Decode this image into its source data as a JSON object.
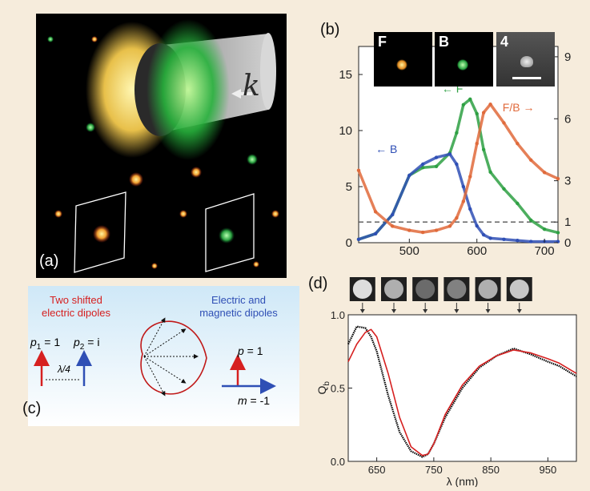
{
  "panel_a": {
    "label": "(a)",
    "k_symbol": "k"
  },
  "panel_b": {
    "label": "(b)",
    "insets": [
      "F",
      "B",
      "4"
    ],
    "labels": {
      "F": "F",
      "B": "B",
      "FB": "F/B"
    },
    "chart_data": {
      "type": "line",
      "x": [
        425,
        450,
        475,
        500,
        520,
        540,
        560,
        570,
        580,
        590,
        600,
        610,
        620,
        640,
        660,
        680,
        700,
        720
      ],
      "xlim": [
        425,
        720
      ],
      "left_ylim": [
        0,
        17.5
      ],
      "right_ylim": [
        0,
        9.5
      ],
      "left_ticks": [
        "0",
        "5",
        "10",
        "15"
      ],
      "right_ticks": [
        "0",
        "1",
        "3",
        "6",
        "9"
      ],
      "x_ticks": [
        "500",
        "600",
        "700"
      ],
      "series": [
        {
          "name": "F",
          "axis": "left",
          "color": "#2ea043",
          "values": [
            0.3,
            0.8,
            2.5,
            6.0,
            6.7,
            6.8,
            8.0,
            9.8,
            12.3,
            12.8,
            11.5,
            8.3,
            6.3,
            4.8,
            3.5,
            2.0,
            1.2,
            0.9
          ]
        },
        {
          "name": "B",
          "axis": "left",
          "color": "#2f4fb5",
          "values": [
            0.3,
            0.8,
            2.5,
            6.0,
            7.0,
            7.6,
            7.9,
            7.0,
            5.0,
            3.0,
            1.5,
            0.7,
            0.4,
            0.3,
            0.2,
            0.1,
            0.1,
            0.1
          ]
        },
        {
          "name": "F/B",
          "axis": "right",
          "color": "#e06a3b",
          "values": [
            3.5,
            1.5,
            0.8,
            0.6,
            0.5,
            0.6,
            0.8,
            1.2,
            2.0,
            3.2,
            4.8,
            6.3,
            6.7,
            5.8,
            4.8,
            4.0,
            3.4,
            3.1
          ]
        }
      ],
      "reference_line": {
        "axis": "right",
        "value": 1,
        "style": "dashed"
      }
    }
  },
  "panel_c": {
    "label": "(c)",
    "left_title": [
      "Two shifted",
      "electric dipoles"
    ],
    "right_title": [
      "Electric and",
      "magnetic dipoles"
    ],
    "p1_label": "p",
    "p1_sub": "1",
    "p1_val": " = 1",
    "p2_label": "p",
    "p2_sub": "2",
    "p2_val": " = i",
    "shift_label": "λ/4",
    "p_label": "p",
    "p_val": " = 1",
    "m_label": "m",
    "m_val": " = -1",
    "colors": {
      "red": "#d62020",
      "blue": "#2f4fb5"
    }
  },
  "panel_d": {
    "label": "(d)",
    "ylabel": "Q",
    "ylabel_sub": "b",
    "xlabel": "λ (nm)",
    "chart_data": {
      "type": "line",
      "xlim": [
        600,
        1000
      ],
      "ylim": [
        0,
        1
      ],
      "x_ticks": [
        "650",
        "750",
        "850",
        "950"
      ],
      "y_ticks": [
        "0.0",
        "0.5",
        "1.0"
      ],
      "thumbnail_wavelengths": [
        625,
        680,
        735,
        790,
        845,
        900
      ],
      "series": [
        {
          "name": "",
          "color": "#000000",
          "style": "dotted",
          "x": [
            600,
            615,
            630,
            640,
            650,
            670,
            690,
            710,
            730,
            740,
            750,
            770,
            800,
            830,
            860,
            890,
            920,
            950,
            970,
            1000
          ],
          "values": [
            0.8,
            0.92,
            0.91,
            0.85,
            0.75,
            0.45,
            0.2,
            0.07,
            0.03,
            0.05,
            0.12,
            0.3,
            0.5,
            0.64,
            0.72,
            0.77,
            0.73,
            0.68,
            0.65,
            0.58
          ]
        },
        {
          "name": "",
          "color": "#d62020",
          "style": "solid",
          "x": [
            600,
            615,
            630,
            640,
            650,
            670,
            690,
            710,
            730,
            740,
            750,
            770,
            800,
            830,
            860,
            890,
            920,
            950,
            970,
            1000
          ],
          "values": [
            0.68,
            0.8,
            0.88,
            0.9,
            0.85,
            0.6,
            0.3,
            0.1,
            0.04,
            0.05,
            0.12,
            0.32,
            0.52,
            0.65,
            0.72,
            0.76,
            0.74,
            0.7,
            0.67,
            0.6
          ]
        }
      ]
    }
  }
}
